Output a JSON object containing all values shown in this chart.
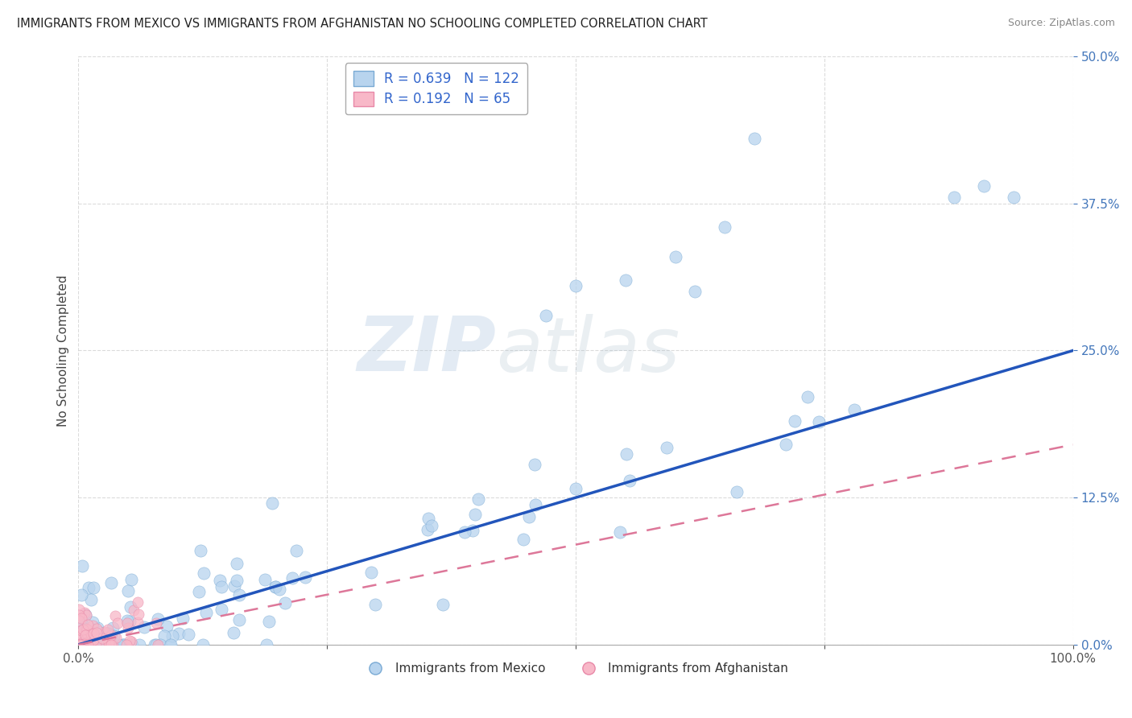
{
  "title": "IMMIGRANTS FROM MEXICO VS IMMIGRANTS FROM AFGHANISTAN NO SCHOOLING COMPLETED CORRELATION CHART",
  "source": "Source: ZipAtlas.com",
  "ylabel": "No Schooling Completed",
  "legend_label_1": "Immigrants from Mexico",
  "legend_label_2": "Immigrants from Afghanistan",
  "R1": 0.639,
  "N1": 122,
  "R2": 0.192,
  "N2": 65,
  "color_blue_fill": "#b8d4ee",
  "color_blue_edge": "#7aaad4",
  "color_pink_fill": "#f8b8c8",
  "color_pink_edge": "#e888a8",
  "color_line_blue": "#2255bb",
  "color_line_pink": "#dd7799",
  "xlim": [
    0.0,
    1.0
  ],
  "ylim": [
    0.0,
    0.5
  ],
  "yticks": [
    0.0,
    0.125,
    0.25,
    0.375,
    0.5
  ],
  "xticks": [
    0.0,
    0.25,
    0.5,
    0.75,
    1.0
  ],
  "watermark_zip": "ZIP",
  "watermark_atlas": "atlas",
  "background_color": "#ffffff",
  "grid_color": "#cccccc",
  "blue_line_slope": 0.25,
  "blue_line_intercept": 0.0,
  "pink_line_slope": 0.17,
  "pink_line_intercept": 0.0
}
